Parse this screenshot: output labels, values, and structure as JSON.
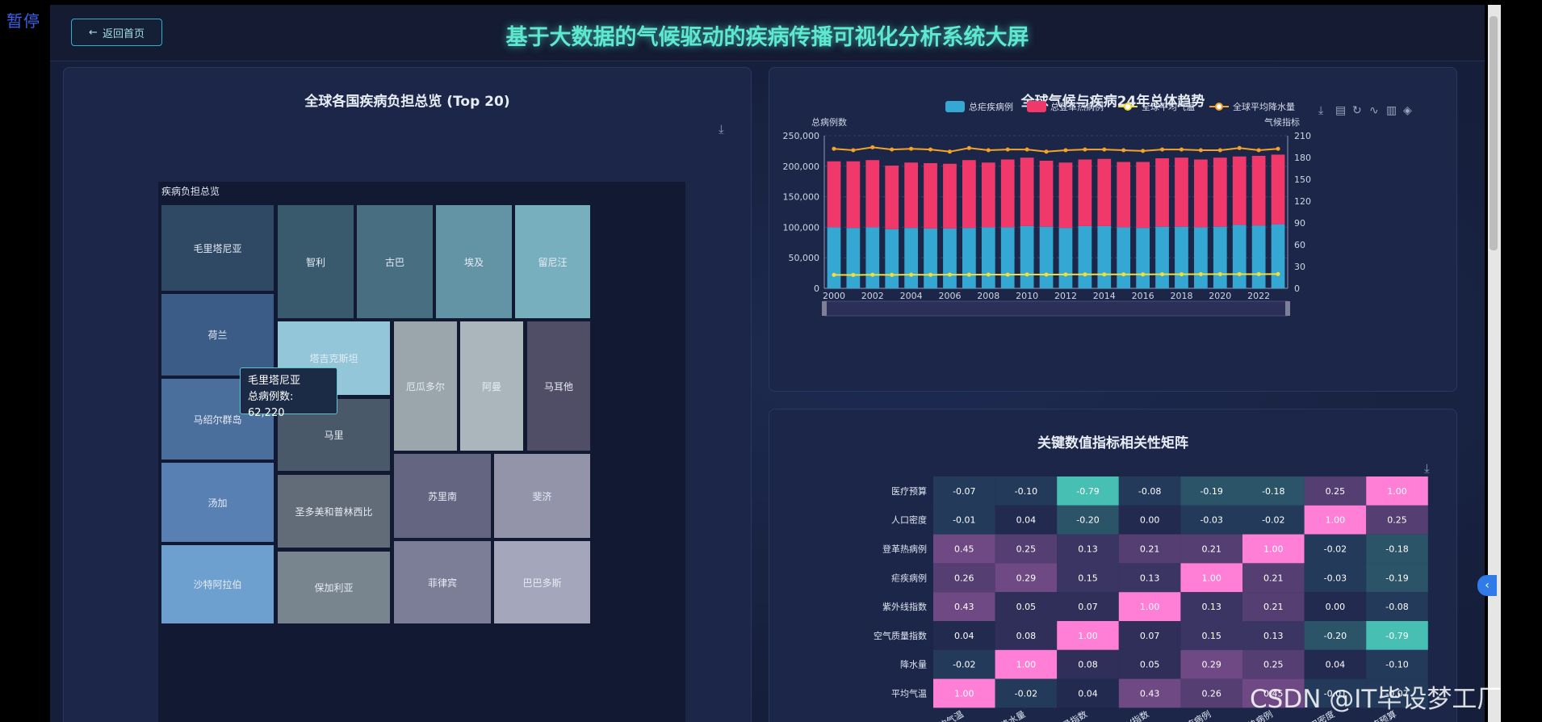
{
  "pause_label": "暂停",
  "header": {
    "back_label": "返回首页",
    "back_icon": "arrow-left-icon",
    "title": "基于大数据的气候驱动的疾病传播可视化分析系统大屏"
  },
  "treemap_panel": {
    "title": "全球各国疾病负担总览 (Top 20)",
    "breadcrumb": "疾病负担总览",
    "tooltip_name": "毛里塔尼亚",
    "tooltip_value": "总病例数: 62,220",
    "tiles": [
      {
        "name": "毛里塔尼亚",
        "color": "#2f4965"
      },
      {
        "name": "智利",
        "color": "#395a6c"
      },
      {
        "name": "古巴",
        "color": "#476f81"
      },
      {
        "name": "埃及",
        "color": "#6394a5"
      },
      {
        "name": "留尼汪",
        "color": "#78afbe"
      },
      {
        "name": "荷兰",
        "color": "#3b5c86"
      },
      {
        "name": "塔吉克斯坦",
        "color": "#93c6d8"
      },
      {
        "name": "厄瓜多尔",
        "color": "#9aa6ab"
      },
      {
        "name": "阿曼",
        "color": "#aab6bb"
      },
      {
        "name": "马耳他",
        "color": "#4f4e66"
      },
      {
        "name": "马绍尔群岛",
        "color": "#4b6f9c"
      },
      {
        "name": "马里",
        "color": "#4a5969"
      },
      {
        "name": "苏里南",
        "color": "#646580"
      },
      {
        "name": "斐济",
        "color": "#9394a9"
      },
      {
        "name": "汤加",
        "color": "#5880b2"
      },
      {
        "name": "圣多美和普林西比",
        "color": "#616c78"
      },
      {
        "name": "沙特阿拉伯",
        "color": "#6d9fcf"
      },
      {
        "name": "保加利亚",
        "color": "#78858f"
      },
      {
        "name": "菲律宾",
        "color": "#7c7e97"
      },
      {
        "name": "巴巴多斯",
        "color": "#a4a6bb"
      }
    ]
  },
  "trend_panel": {
    "title": "全球气候与疾病24年总体趋势",
    "toolbox_icons": [
      "download-icon",
      "data-view-icon",
      "restore-icon",
      "line-chart-icon",
      "bar-chart-icon",
      "stack-icon"
    ]
  },
  "chart_data": [
    {
      "type": "bar",
      "title": "全球气候与疾病24年总体趋势",
      "ylabel": "总病例数",
      "y2label": "气候指标",
      "legend_position": "top",
      "ylim": [
        0,
        250000
      ],
      "y2lim": [
        0,
        210
      ],
      "yticks": [
        "250,000",
        "200,000",
        "150,000",
        "100,000",
        "50,000",
        "0"
      ],
      "y2ticks": [
        "210",
        "180",
        "150",
        "120",
        "90",
        "60",
        "30",
        "0"
      ],
      "xticks": [
        "2000",
        "2002",
        "2004",
        "2006",
        "2008",
        "2010",
        "2012",
        "2014",
        "2016",
        "2018",
        "2020",
        "2022"
      ],
      "x": [
        2000,
        2001,
        2002,
        2003,
        2004,
        2005,
        2006,
        2007,
        2008,
        2009,
        2010,
        2011,
        2012,
        2013,
        2014,
        2015,
        2016,
        2017,
        2018,
        2019,
        2020,
        2021,
        2022,
        2023
      ],
      "series": [
        {
          "name": "总疟疾病例",
          "type": "bar",
          "color": "#35a7d3",
          "values": [
            100000,
            99000,
            100000,
            97000,
            99000,
            98000,
            98000,
            99000,
            100000,
            100000,
            102000,
            101000,
            99000,
            102000,
            102000,
            100000,
            99000,
            101000,
            101000,
            100000,
            101000,
            104000,
            103000,
            105000
          ]
        },
        {
          "name": "总登革热病例",
          "type": "bar",
          "color": "#f0386b",
          "values": [
            108000,
            109000,
            110000,
            104000,
            107000,
            107000,
            106000,
            111000,
            106000,
            111000,
            112000,
            108000,
            107000,
            109000,
            110000,
            107000,
            108000,
            112000,
            113000,
            111000,
            113000,
            112000,
            114000,
            114000
          ]
        },
        {
          "name": "全球平均气温",
          "type": "line",
          "axis": "y2",
          "color": "#f2df3b",
          "values": [
            18.5,
            18.4,
            18.6,
            18.5,
            18.7,
            18.6,
            18.8,
            18.7,
            18.9,
            18.8,
            19.0,
            18.9,
            19.0,
            19.1,
            19.1,
            19.2,
            19.1,
            19.3,
            19.3,
            19.4,
            19.4,
            19.5,
            19.5,
            19.6
          ]
        },
        {
          "name": "全球平均降水量",
          "type": "line",
          "axis": "y2",
          "color": "#f4a32a",
          "values": [
            192,
            190,
            194,
            191,
            192,
            191,
            188,
            193,
            190,
            191,
            191,
            188,
            190,
            191,
            191,
            190,
            189,
            191,
            191,
            190,
            190,
            193,
            190,
            192
          ]
        }
      ]
    },
    {
      "type": "heatmap",
      "title": "关键数值指标相关性矩阵",
      "rows": [
        "医疗预算",
        "人口密度",
        "登革热病例",
        "疟疾病例",
        "紫外线指数",
        "空气质量指数",
        "降水量",
        "平均气温"
      ],
      "cols": [
        "平均气温",
        "降水量",
        "空气质量指数",
        "UV指数",
        "疟疾病例",
        "登革热病例",
        "人口密度",
        "医疗预算"
      ],
      "values": [
        [
          -0.07,
          -0.1,
          -0.79,
          -0.08,
          -0.19,
          -0.18,
          0.25,
          1.0
        ],
        [
          -0.01,
          0.04,
          -0.2,
          0.0,
          -0.03,
          -0.02,
          1.0,
          0.25
        ],
        [
          0.45,
          0.25,
          0.13,
          0.21,
          0.21,
          1.0,
          -0.02,
          -0.18
        ],
        [
          0.26,
          0.29,
          0.15,
          0.13,
          1.0,
          0.21,
          -0.03,
          -0.19
        ],
        [
          0.43,
          0.05,
          0.07,
          1.0,
          0.13,
          0.21,
          0.0,
          -0.08
        ],
        [
          0.04,
          0.08,
          1.0,
          0.07,
          0.15,
          0.13,
          -0.2,
          -0.79
        ],
        [
          -0.02,
          1.0,
          0.08,
          0.05,
          0.29,
          0.25,
          0.04,
          -0.1
        ],
        [
          1.0,
          -0.02,
          0.04,
          0.43,
          0.26,
          0.45,
          -0.01,
          -0.07
        ]
      ]
    }
  ],
  "heatmap_panel": {
    "title": "关键数值指标相关性矩阵"
  },
  "watermark": "CSDN @IT毕设梦工厂",
  "side_button_icon": "chevron-left-icon"
}
